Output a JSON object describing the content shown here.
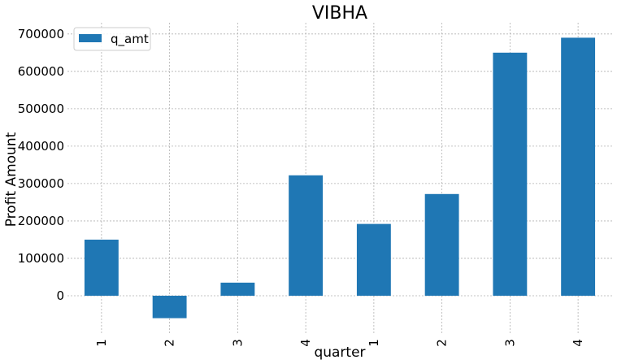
{
  "chart_data": {
    "type": "bar",
    "title": "VIBHA",
    "xlabel": "quarter",
    "ylabel": "Profit Amount",
    "categories": [
      "1",
      "2",
      "3",
      "4",
      "1",
      "2",
      "3",
      "4"
    ],
    "series": [
      {
        "name": "q_amt",
        "values": [
          150000,
          -60000,
          35000,
          322000,
          192000,
          272000,
          650000,
          690000
        ],
        "color": "#1f77b4"
      }
    ],
    "ylim": [
      -100000,
      730000
    ],
    "yticks": [
      0,
      100000,
      200000,
      300000,
      400000,
      500000,
      600000,
      700000
    ],
    "ytick_labels": [
      "0",
      "100000",
      "200000",
      "300000",
      "400000",
      "500000",
      "600000",
      "700000"
    ],
    "grid": true,
    "legend_position": "top-left"
  }
}
